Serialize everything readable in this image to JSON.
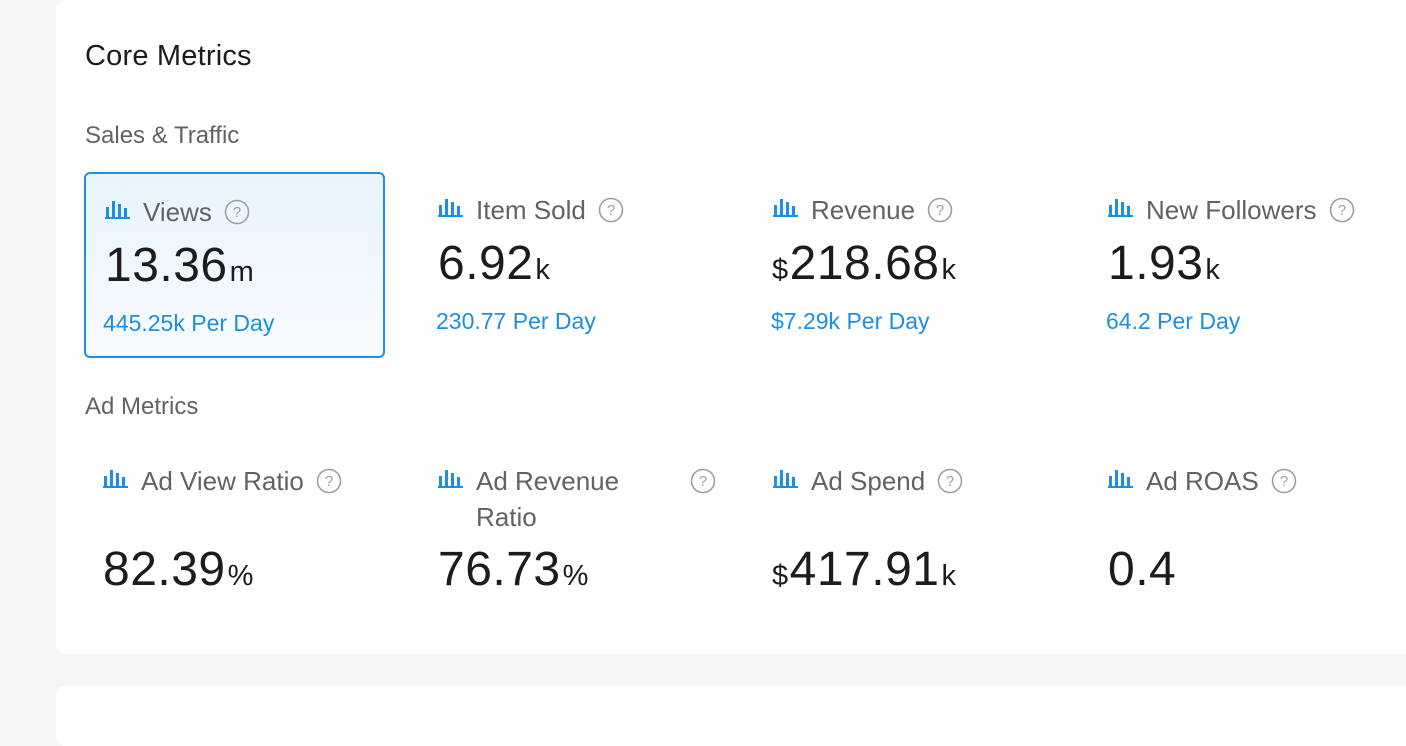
{
  "colors": {
    "accent": "#1a8fe3",
    "active_border": "#1f8fe6",
    "card_bg": "#ffffff",
    "page_bg": "#f5f5f6"
  },
  "card_title": "Core Metrics",
  "sections": [
    {
      "label": "Sales & Traffic",
      "metrics": [
        {
          "label": "Views",
          "currency": "",
          "value": "13.36",
          "unit": "m",
          "per_day": "445.25k Per Day",
          "active": true
        },
        {
          "label": "Item Sold",
          "currency": "",
          "value": "6.92",
          "unit": "k",
          "per_day": "230.77 Per Day",
          "active": false
        },
        {
          "label": "Revenue",
          "currency": "$",
          "value": "218.68",
          "unit": "k",
          "per_day": "$7.29k Per Day",
          "active": false
        },
        {
          "label": "New Followers",
          "currency": "",
          "value": "1.93",
          "unit": "k",
          "per_day": "64.2 Per Day",
          "active": false
        }
      ]
    },
    {
      "label": "Ad Metrics",
      "metrics": [
        {
          "label": "Ad View Ratio",
          "currency": "",
          "value": "82.39",
          "unit": "%",
          "per_day": "",
          "active": false
        },
        {
          "label": "Ad Revenue Ratio",
          "currency": "",
          "value": "76.73",
          "unit": "%",
          "per_day": "",
          "active": false
        },
        {
          "label": "Ad Spend",
          "currency": "$",
          "value": "417.91",
          "unit": "k",
          "per_day": "",
          "active": false
        },
        {
          "label": "Ad ROAS",
          "currency": "",
          "value": "0.4",
          "unit": "",
          "per_day": "",
          "active": false
        }
      ]
    }
  ],
  "icons": {
    "metric_icon": "bar-chart-icon",
    "help_icon": "help-circle-icon"
  }
}
